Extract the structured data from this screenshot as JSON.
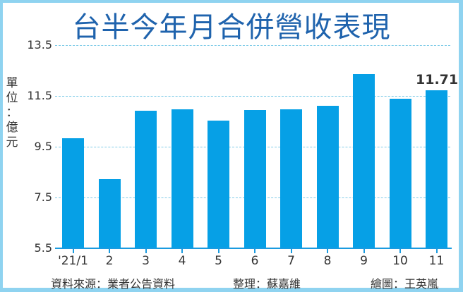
{
  "title": "台半今年月合併營收表現",
  "unit_label": [
    "單",
    "位",
    "：",
    "億",
    "元"
  ],
  "footer": {
    "source": "資料來源：業者公告資料",
    "editor": "整理：蘇嘉維",
    "illustrator": "繪圖：王英嵐"
  },
  "colors": {
    "bar": "#06a0e6",
    "title": "#1f63ad",
    "grid": "#7fcbe8",
    "border": "#8fd3f0"
  },
  "chart_data": {
    "type": "bar",
    "title": "台半今年月合併營收表現",
    "xlabel": "",
    "ylabel": "單位：億元",
    "categories": [
      "'21/1",
      "2",
      "3",
      "4",
      "5",
      "6",
      "7",
      "8",
      "9",
      "10",
      "11"
    ],
    "values": [
      9.83,
      8.22,
      10.93,
      10.97,
      10.54,
      10.95,
      10.97,
      11.12,
      12.36,
      11.4,
      11.71
    ],
    "data_labels": [
      {
        "category": "11",
        "text": "11.71"
      }
    ],
    "yticks": [
      "13.5",
      "11.5",
      "9.5",
      "7.5",
      "5.5"
    ],
    "ylim": [
      5.5,
      13.5
    ],
    "grid": true,
    "legend": null
  }
}
